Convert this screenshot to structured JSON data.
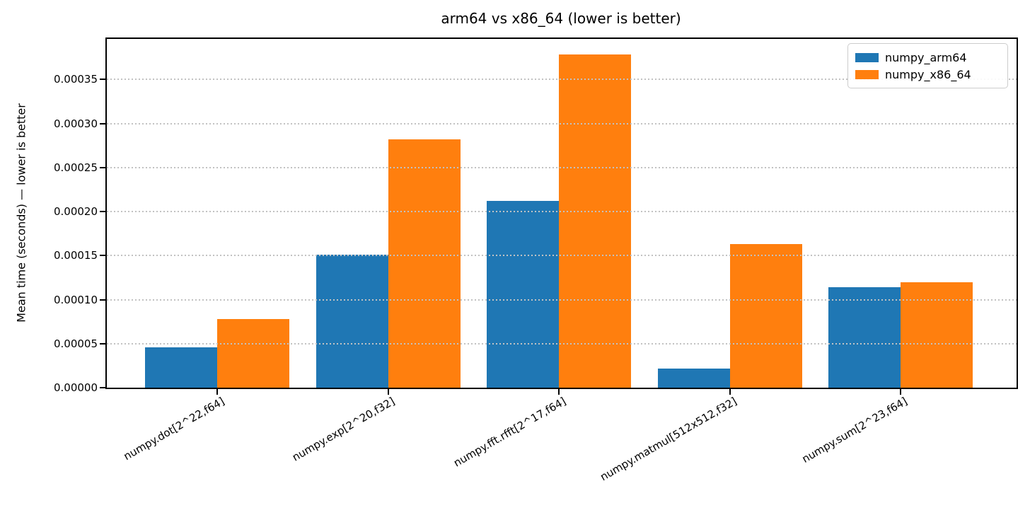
{
  "chart_data": {
    "type": "bar",
    "title": "arm64 vs x86_64 (lower is better)",
    "xlabel": "",
    "ylabel": "Mean time (seconds) — lower is better",
    "categories": [
      "numpy.dot[2^22,f64]",
      "numpy.exp[2^20,f32]",
      "numpy.fft.rfft[2^17,f64]",
      "numpy.matmul[512x512,f32]",
      "numpy.sum[2^23,f64]"
    ],
    "series": [
      {
        "name": "numpy_arm64",
        "color": "#1f77b4",
        "values": [
          4.6e-05,
          0.000151,
          0.000212,
          2.2e-05,
          0.000114
        ]
      },
      {
        "name": "numpy_x86_64",
        "color": "#ff7f0e",
        "values": [
          7.8e-05,
          0.000282,
          0.000378,
          0.000163,
          0.00012
        ]
      }
    ],
    "ylim": [
      0,
      0.000396
    ],
    "ytick_step": 5e-05,
    "ytick_labels": [
      "0.00000",
      "0.00005",
      "0.00010",
      "0.00015",
      "0.00020",
      "0.00025",
      "0.00030",
      "0.00035"
    ],
    "grid": "horizontal-dotted",
    "legend_position": "upper-right",
    "legend_entries": [
      "numpy_arm64",
      "numpy_x86_64"
    ]
  }
}
